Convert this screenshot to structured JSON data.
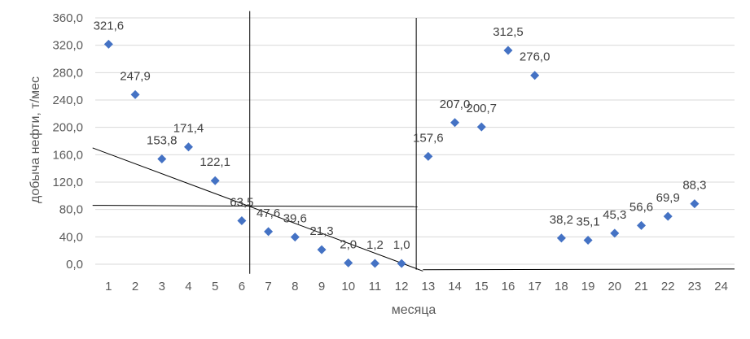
{
  "chart_data": {
    "type": "scatter",
    "title": "",
    "xlabel": "месяца",
    "ylabel": "добыча нефти, т/мес",
    "xlim": [
      0.5,
      24.5
    ],
    "ylim": [
      0,
      360
    ],
    "x_ticks": [
      1,
      2,
      3,
      4,
      5,
      6,
      7,
      8,
      9,
      10,
      11,
      12,
      13,
      14,
      15,
      16,
      17,
      18,
      19,
      20,
      21,
      22,
      23,
      24
    ],
    "y_ticks": [
      "0,0",
      "40,0",
      "80,0",
      "120,0",
      "160,0",
      "200,0",
      "240,0",
      "280,0",
      "320,0",
      "360,0"
    ],
    "grid": true,
    "legend": "none",
    "marker_color": "#4472C4",
    "series": [
      {
        "x": [
          1,
          2,
          3,
          4,
          5,
          6,
          7,
          8,
          9,
          10,
          11,
          12,
          13,
          14,
          15,
          16,
          17,
          18,
          19,
          20,
          21,
          22,
          23
        ],
        "y": [
          321.6,
          247.9,
          153.8,
          171.4,
          122.1,
          63.5,
          47.6,
          39.6,
          21.3,
          2.0,
          1.2,
          1.0,
          157.6,
          207.0,
          200.7,
          312.5,
          276.0,
          38.2,
          35.1,
          45.3,
          56.6,
          69.9,
          88.3
        ],
        "labels": [
          "321,6",
          "247,9",
          "153,8",
          "171,4",
          "122,1",
          "63,5",
          "47,6",
          "39,6",
          "21,3",
          "2,0",
          "1,2",
          "1,0",
          "157,6",
          "207,0",
          "200,7",
          "312,5",
          "276,0",
          "38,2",
          "35,1",
          "45,3",
          "56,6",
          "69,9",
          "88,3"
        ]
      }
    ],
    "annotation_lines": [
      {
        "x": [
          0.4,
          12.8
        ],
        "y": [
          170,
          -10
        ]
      },
      {
        "x": [
          0.4,
          12.6
        ],
        "y": [
          86,
          84
        ]
      },
      {
        "x": [
          12.8,
          24.5
        ],
        "y": [
          -8,
          -7
        ]
      },
      {
        "x": [
          6.3,
          6.3
        ],
        "y": [
          370,
          -14
        ]
      },
      {
        "x": [
          12.55,
          12.55
        ],
        "y": [
          360,
          -8
        ]
      }
    ],
    "annotation_color": "#000000"
  }
}
